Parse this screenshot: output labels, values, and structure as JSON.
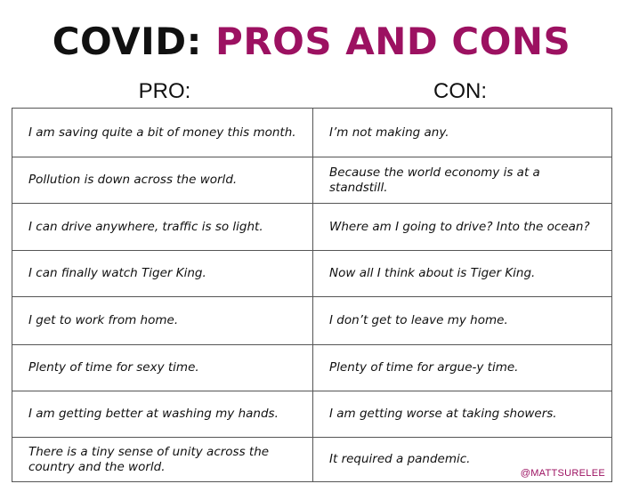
{
  "title": {
    "part1": "COVID:",
    "part2": "PROS AND CONS"
  },
  "headers": {
    "pro": "PRO:",
    "con": "CON:"
  },
  "rows": [
    {
      "pro": "I am saving quite a bit of money this month.",
      "con": "I’m not making any."
    },
    {
      "pro": "Pollution is down across the world.",
      "con": "Because the world economy is at a standstill."
    },
    {
      "pro": "I can drive anywhere, traffic is so light.",
      "con": "Where am I going to drive? Into the ocean?"
    },
    {
      "pro": "I can finally watch Tiger King.",
      "con": "Now all I think about is Tiger King."
    },
    {
      "pro": "I get to work from home.",
      "con": "I don’t get to leave my home."
    },
    {
      "pro": "Plenty of time for sexy time.",
      "con": "Plenty of time for argue-y time."
    },
    {
      "pro": "I am getting better at washing my hands.",
      "con": "I am getting worse at taking showers."
    },
    {
      "pro": "There is a tiny sense of unity across the country and the world.",
      "con": "It required a pandemic."
    }
  ],
  "credit": "@MATTSURELEE",
  "colors": {
    "accent": "#9c1161",
    "text": "#111111",
    "border": "#555555"
  }
}
